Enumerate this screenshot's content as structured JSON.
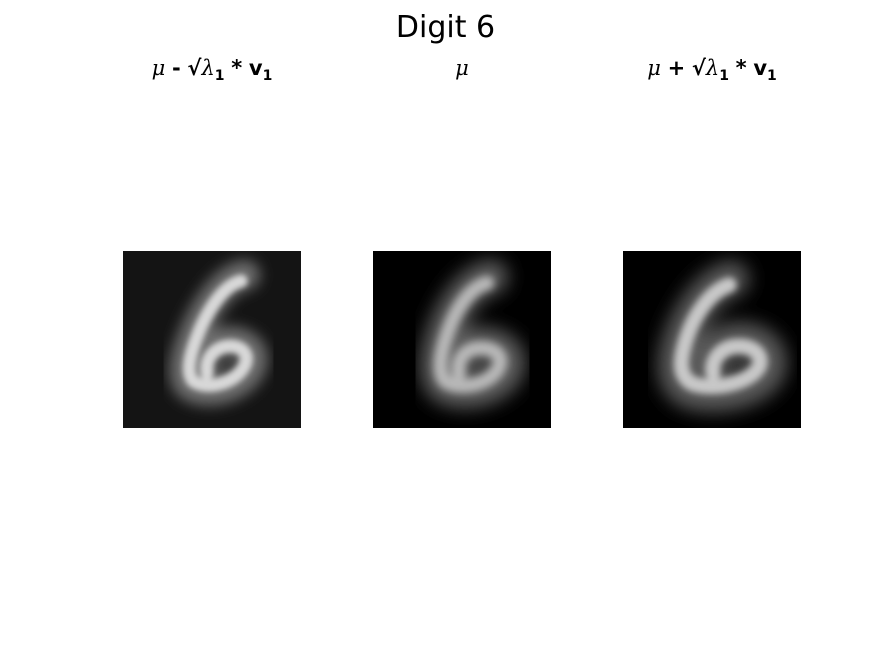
{
  "figure": {
    "title": "Digit 6"
  },
  "panels": [
    {
      "mu": "μ",
      "op": "-",
      "sqrt": "√",
      "lambda": "λ",
      "lambda_sub": "1",
      "times": "*",
      "v": "v",
      "v_sub": "1",
      "background": "#141414"
    },
    {
      "mu": "μ",
      "background": "#000000"
    },
    {
      "mu": "μ",
      "op": "+",
      "sqrt": "√",
      "lambda": "λ",
      "lambda_sub": "1",
      "times": "*",
      "v": "v",
      "v_sub": "1",
      "background": "#000000"
    }
  ]
}
